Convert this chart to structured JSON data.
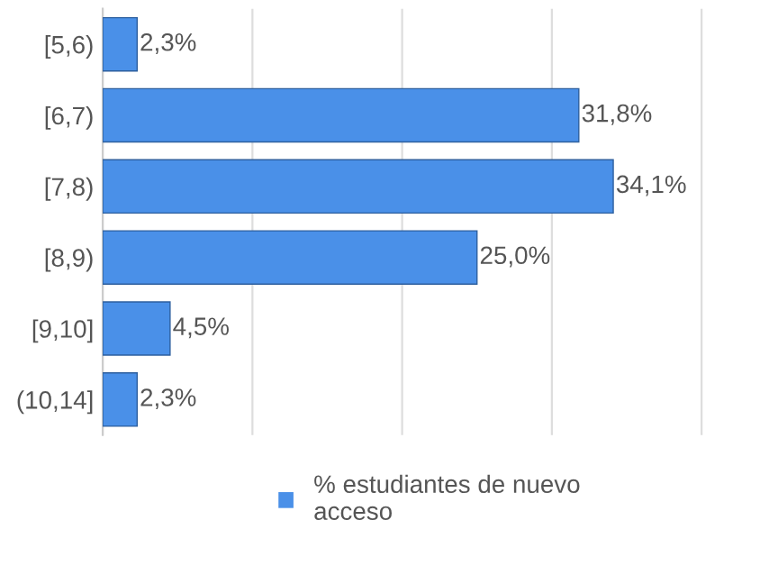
{
  "chart_data": {
    "type": "bar",
    "orientation": "horizontal",
    "categories": [
      "[5,6)",
      "[6,7)",
      "[7,8)",
      "[8,9)",
      "[9,10]",
      "(10,14]"
    ],
    "series": [
      {
        "name": "% estudiantes de nuevo acceso",
        "color": "#4a90e8",
        "values": [
          2.3,
          31.8,
          34.1,
          25.0,
          4.5,
          2.3
        ],
        "value_labels": [
          "2,3%",
          "31,8%",
          "34,1%",
          "25,0%",
          "4,5%",
          "2,3%"
        ]
      }
    ],
    "grid": "x",
    "tick_labels": "y",
    "legend": "bottom"
  }
}
